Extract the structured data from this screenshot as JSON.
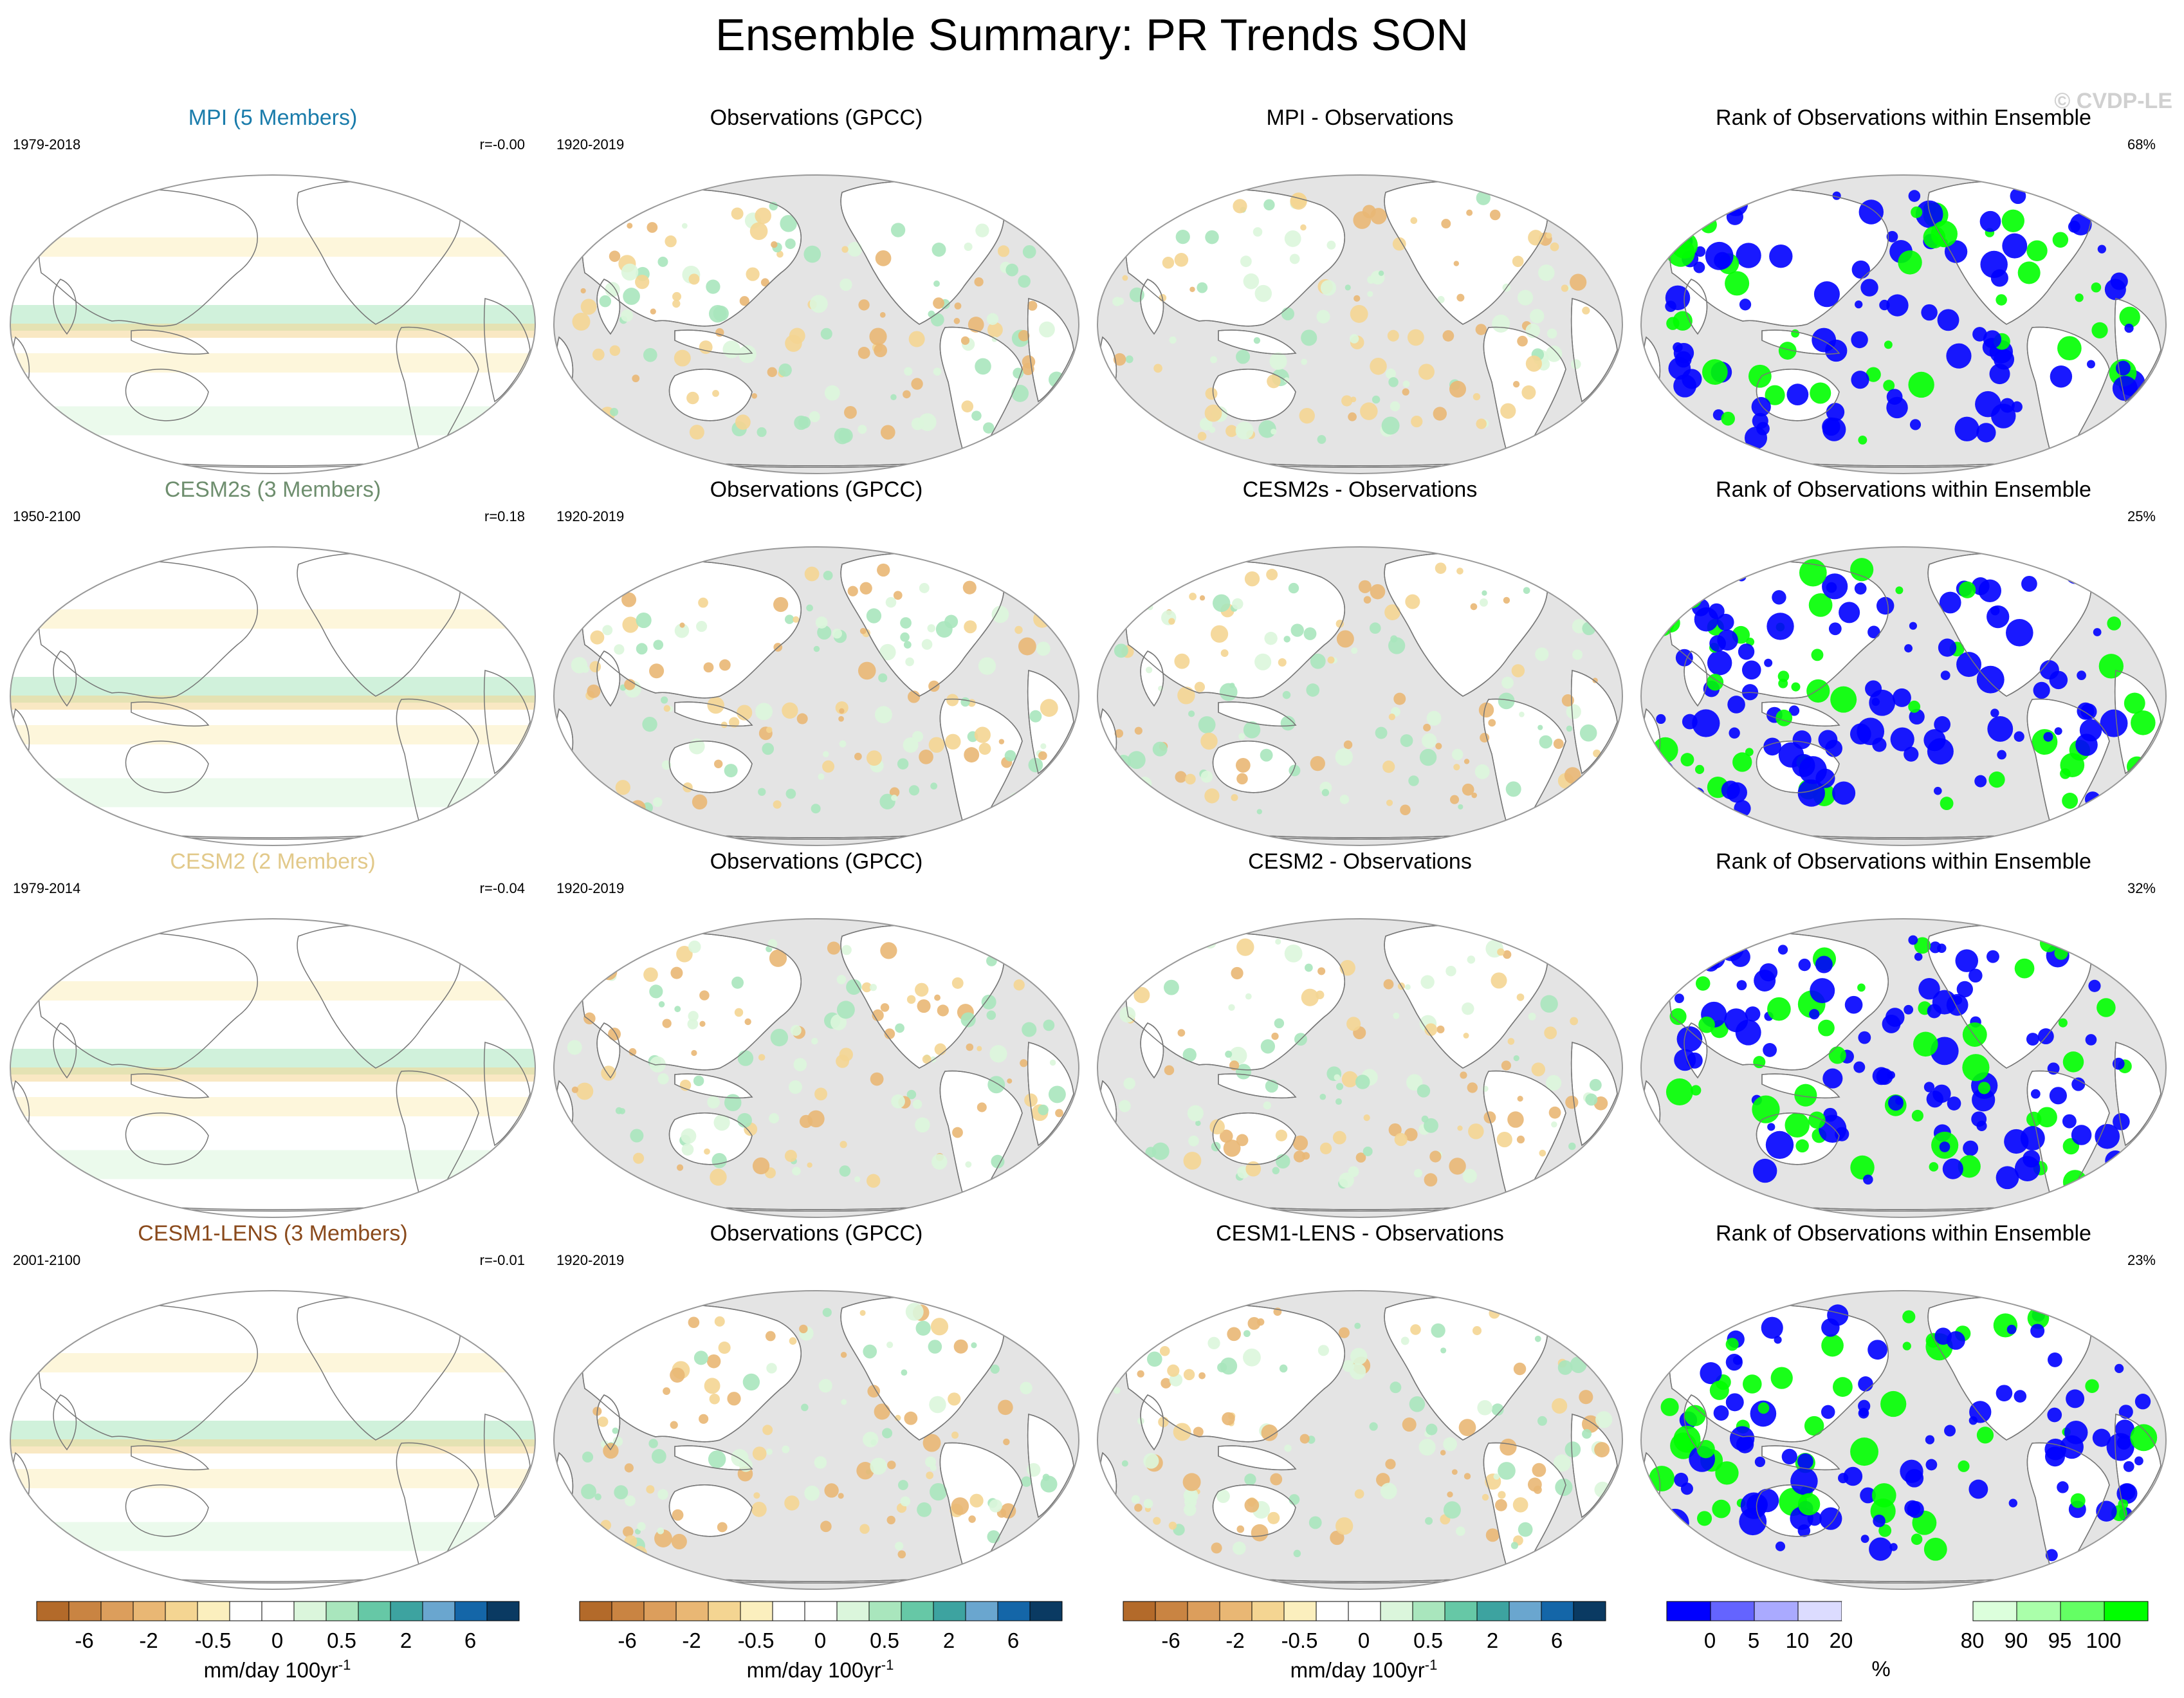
{
  "page": {
    "title": "Ensemble Summary: PR Trends SON",
    "watermark": "© CVDP-LE"
  },
  "chart_data": {
    "type": "map-grid",
    "rows": [
      {
        "model_title": "MPI (5 Members)",
        "model_color": "#1a7cab",
        "model_period": "1979-2018",
        "pattern_corr": "r=-0.00",
        "obs_title": "Observations (GPCC)",
        "obs_period": "1920-2019",
        "diff_title": "MPI - Observations",
        "rank_title": "Rank of Observations within Ensemble",
        "rank_pct": "68%"
      },
      {
        "model_title": "CESM2s (3 Members)",
        "model_color": "#6e8e6e",
        "model_period": "1950-2100",
        "pattern_corr": "r=0.18",
        "obs_title": "Observations (GPCC)",
        "obs_period": "1920-2019",
        "diff_title": "CESM2s - Observations",
        "rank_title": "Rank of Observations within Ensemble",
        "rank_pct": "25%"
      },
      {
        "model_title": "CESM2 (2 Members)",
        "model_color": "#e2c98a",
        "model_period": "1979-2014",
        "pattern_corr": "r=-0.04",
        "obs_title": "Observations (GPCC)",
        "obs_period": "1920-2019",
        "diff_title": "CESM2 - Observations",
        "rank_title": "Rank of Observations within Ensemble",
        "rank_pct": "32%"
      },
      {
        "model_title": "CESM1-LENS (3 Members)",
        "model_color": "#8a4a1c",
        "model_period": "2001-2100",
        "pattern_corr": "r=-0.01",
        "obs_title": "Observations (GPCC)",
        "obs_period": "1920-2019",
        "diff_title": "CESM1-LENS - Observations",
        "rank_title": "Rank of Observations within Ensemble",
        "rank_pct": "23%"
      }
    ],
    "trend_colorbar": {
      "colors": [
        "#b36a2a",
        "#c98442",
        "#dc9e5c",
        "#e9b774",
        "#f4d592",
        "#fbefbe",
        "#ffffff",
        "#ffffff",
        "#dbf6dc",
        "#a9e6bd",
        "#66c8a6",
        "#3da3a0",
        "#6aa6cf",
        "#1466a8",
        "#0a3a62"
      ],
      "tick_labels": [
        "-6",
        "-2",
        "-0.5",
        "0",
        "0.5",
        "2",
        "6"
      ],
      "unit": "mm/day 100yr",
      "unit_sup": "-1"
    },
    "rank_colorbar": {
      "colors": [
        "#0000ff",
        "#6464ff",
        "#aaaaff",
        "#dcdcff",
        "#ffffff",
        "#ffffff",
        "#ffffff",
        "#dcffdc",
        "#aaffaa",
        "#64ff64",
        "#00ff00"
      ],
      "tick_labels": [
        "0",
        "5",
        "10",
        "20",
        "80",
        "90",
        "95",
        "100"
      ],
      "unit": "%"
    }
  }
}
